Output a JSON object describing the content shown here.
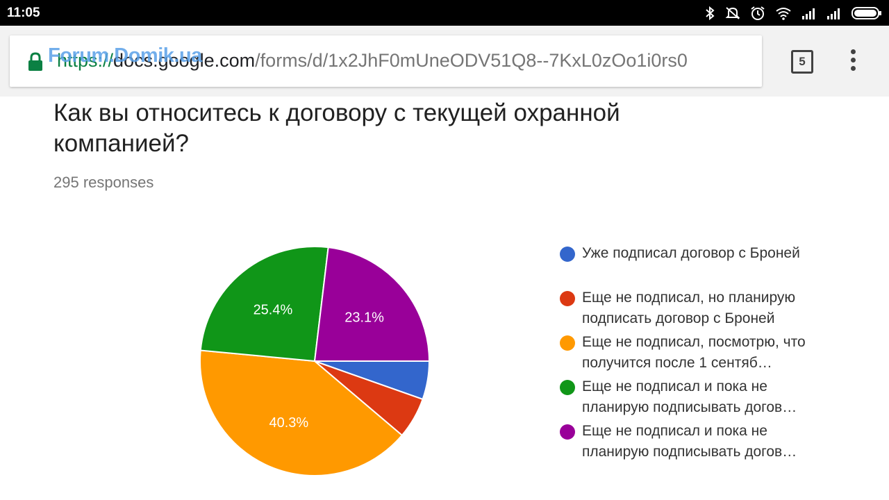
{
  "status_bar": {
    "time": "11:05",
    "icons": [
      "bluetooth-icon",
      "mute-icon",
      "alarm-icon",
      "wifi-icon",
      "signal-icon",
      "signal-icon",
      "battery-icon"
    ]
  },
  "browser": {
    "watermark": "Forum.Domik.ua",
    "url_scheme": "https://",
    "url_host": "docs.google.com",
    "url_path": "/forms/d/1x2JhF0mUneODV51Q8--7KxL0zOo1i0rs0",
    "tab_count": "5"
  },
  "question": {
    "title": "Как вы относитесь к договору с текущей охранной компанией?",
    "responses": "295 responses"
  },
  "chart_data": {
    "type": "pie",
    "slices": [
      {
        "label": "Уже подписал договор с Броней",
        "value": 5.4,
        "color": "#3366cc",
        "label_text": ""
      },
      {
        "label": "Еще не подписал, но планирую подписать договор с Броней",
        "value": 5.8,
        "color": "#dc3912",
        "label_text": ""
      },
      {
        "label": "Еще не подписал, посмотрю, что получится после 1 сентяб…",
        "value": 40.3,
        "color": "#ff9900",
        "label_text": "40.3%"
      },
      {
        "label": "Еще не подписал и пока не планирую подписывать догов…",
        "value": 25.4,
        "color": "#109618",
        "label_text": "25.4%"
      },
      {
        "label": "Еще не подписал и пока не планирую подписывать догов…",
        "value": 23.1,
        "color": "#990099",
        "label_text": "23.1%"
      }
    ],
    "legend_position": "right"
  }
}
